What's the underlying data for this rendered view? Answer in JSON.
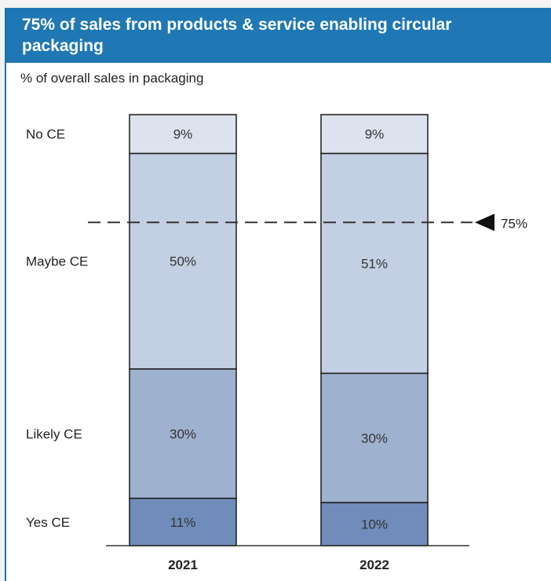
{
  "title": "75% of sales from products & service enabling circular packaging",
  "subtitle": "% of overall sales in packaging",
  "colors": {
    "title_bar": "#1f77b4",
    "no_ce": "#dce3ee",
    "maybe_ce": "#c3cfe2",
    "likely_ce": "#9eb1cf",
    "yes_ce": "#6f8cbb"
  },
  "chart_data": {
    "type": "bar",
    "stacked": true,
    "categories": [
      "2021",
      "2022"
    ],
    "series": [
      {
        "name": "Yes CE",
        "values": [
          11,
          10
        ],
        "labels": [
          "11%",
          "10%"
        ],
        "color": "#6f8cbb"
      },
      {
        "name": "Likely CE",
        "values": [
          30,
          30
        ],
        "labels": [
          "30%",
          "30%"
        ],
        "color": "#9eb1cf"
      },
      {
        "name": "Maybe CE",
        "values": [
          50,
          51
        ],
        "labels": [
          "50%",
          "51%"
        ],
        "color": "#c3cfe2"
      },
      {
        "name": "No CE",
        "values": [
          9,
          9
        ],
        "labels": [
          "9%",
          "9%"
        ],
        "color": "#dce3ee"
      }
    ],
    "reference_line": {
      "value": 75,
      "label": "75%"
    },
    "ylim": [
      0,
      100
    ]
  }
}
